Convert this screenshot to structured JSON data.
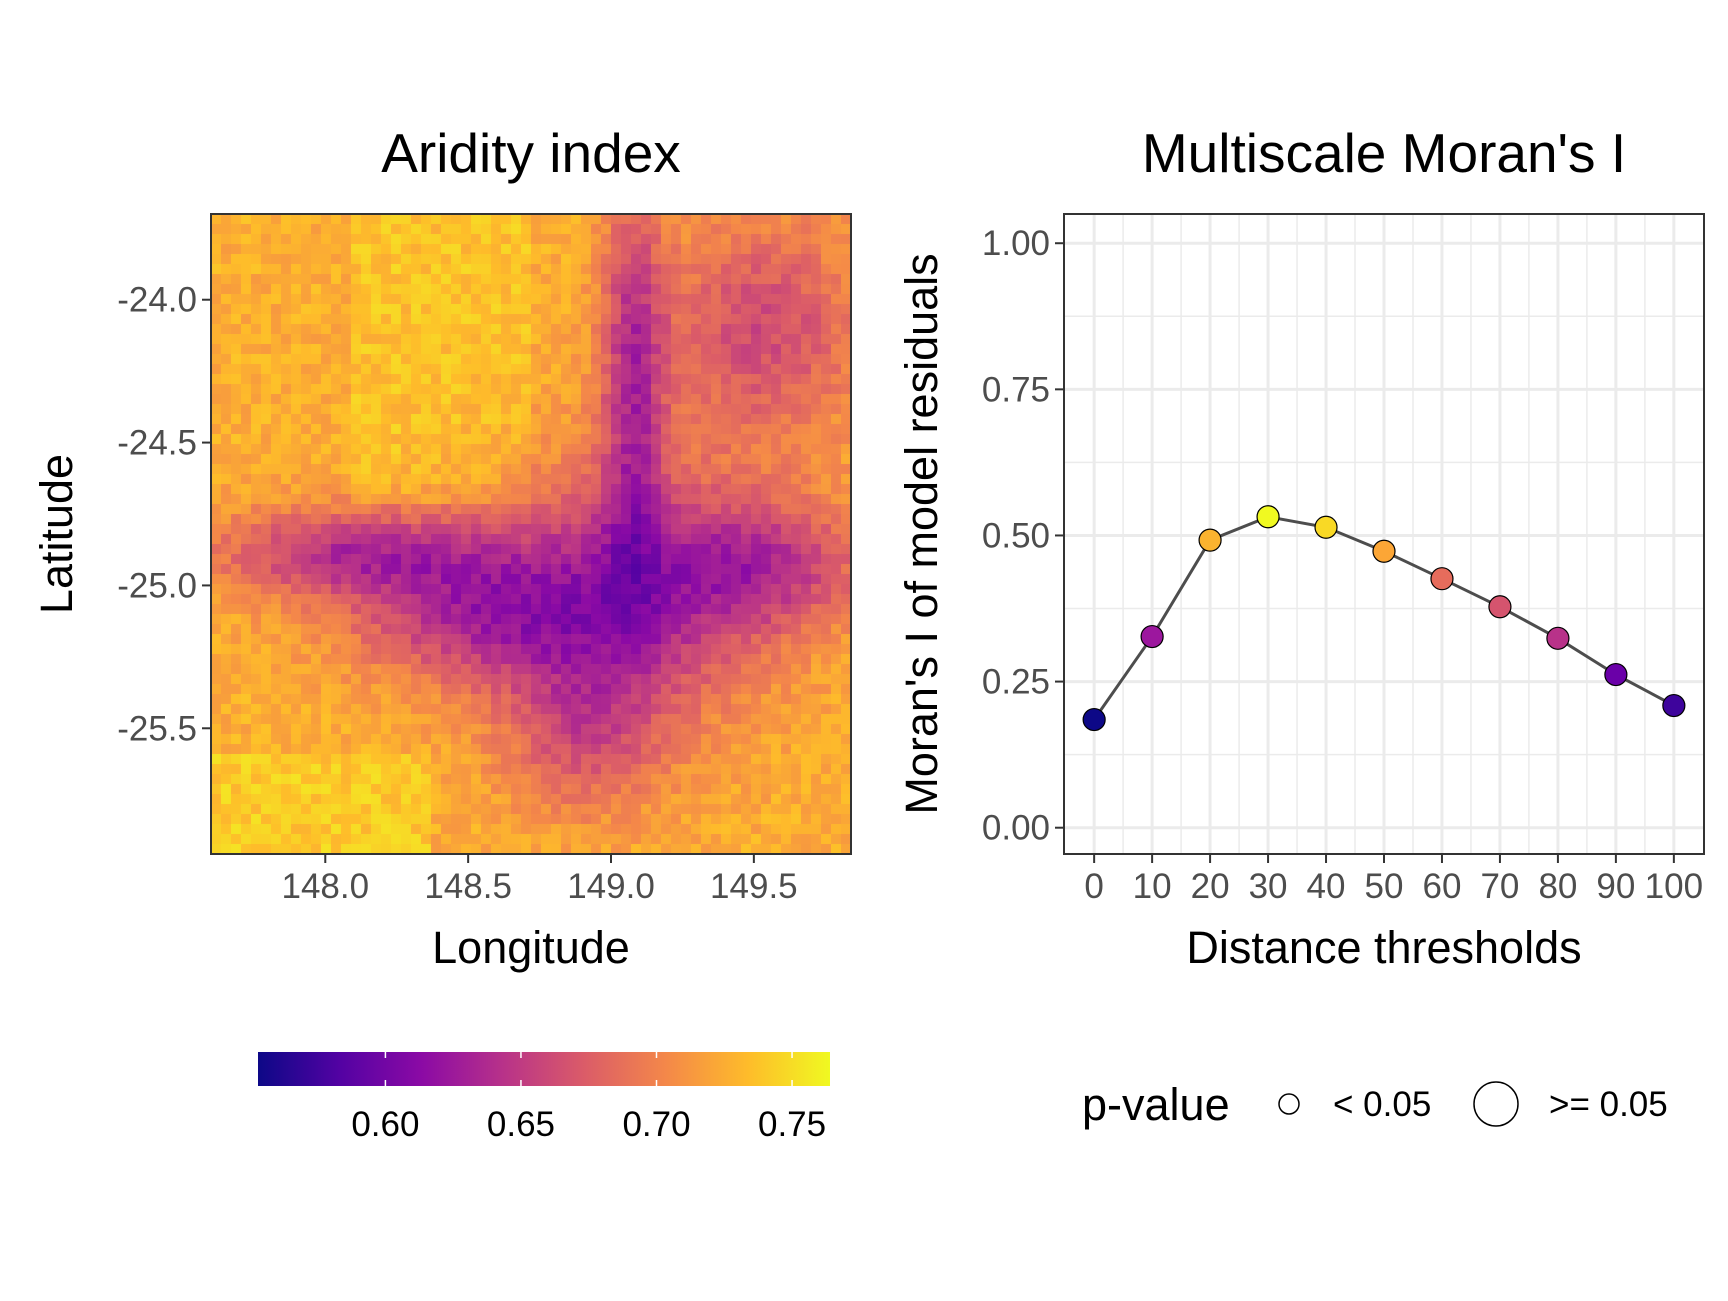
{
  "chart_data": [
    {
      "type": "heatmap",
      "title": "Aridity index",
      "xlabel": "Longitude",
      "ylabel": "Latitude",
      "xlim": [
        147.6,
        149.84
      ],
      "ylim": [
        -25.94,
        -23.7
      ],
      "x_ticks": [
        "148.0",
        "148.5",
        "149.0",
        "149.5"
      ],
      "y_ticks": [
        "-24.0",
        "-24.5",
        "-25.0",
        "-25.5"
      ],
      "legend": {
        "position": "bottom",
        "labels": [
          "0.60",
          "0.65",
          "0.70",
          "0.75"
        ],
        "range": [
          0.553,
          0.764
        ],
        "palette": [
          "#0d0887",
          "#5302a3",
          "#8b0aa5",
          "#b83289",
          "#db5c68",
          "#f48849",
          "#febc2a",
          "#f0f921"
        ]
      },
      "grid": false
    },
    {
      "type": "scatter",
      "title": "Multiscale Moran's I",
      "xlabel": "Distance thresholds",
      "ylabel": "Moran's I of model residuals",
      "categories": [
        "0",
        "10",
        "20",
        "30",
        "40",
        "50",
        "60",
        "70",
        "80",
        "90",
        "100"
      ],
      "y_ticks": [
        "0.00",
        "0.25",
        "0.50",
        "0.75",
        "1.00"
      ],
      "ylim": [
        -0.045,
        1.05
      ],
      "series": [
        {
          "values": [
            0.185,
            0.327,
            0.492,
            0.532,
            0.514,
            0.473,
            0.426,
            0.378,
            0.324,
            0.262,
            0.209
          ],
          "point_colors": [
            "#0d0887",
            "#9c179e",
            "#fbb32f",
            "#f0f921",
            "#f9d925",
            "#fca636",
            "#e66c5c",
            "#d5546e",
            "#b83289",
            "#6a00a8",
            "#3e049c"
          ],
          "p_value": [
            "< 0.05",
            "< 0.05",
            "< 0.05",
            "< 0.05",
            "< 0.05",
            "< 0.05",
            "< 0.05",
            "< 0.05",
            "< 0.05",
            "< 0.05",
            "< 0.05"
          ]
        }
      ],
      "grid": true,
      "legend": {
        "position": "bottom",
        "title": "p-value",
        "labels": [
          "< 0.05",
          ">= 0.05"
        ]
      }
    }
  ]
}
